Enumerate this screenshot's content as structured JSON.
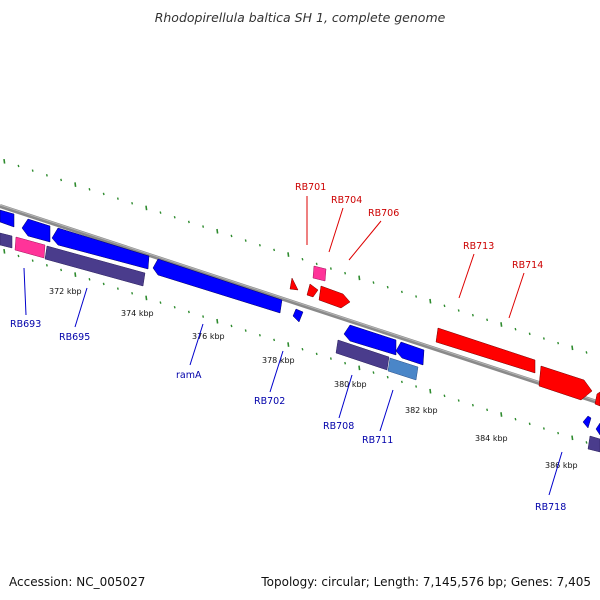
{
  "title": "Rhodopirellula baltica SH 1, complete genome",
  "footer": {
    "accession": "Accession: NC_005027",
    "summary": "Topology: circular; Length: 7,145,576 bp; Genes: 7,405"
  },
  "colors": {
    "backbone": "#888888",
    "dots": "#2e8b2e",
    "forward_gene": "#ff0000",
    "reverse_gene": "#0000ff",
    "forward_label": "#cc0000",
    "reverse_label": "#0000aa",
    "forward_rna": "#ff3399",
    "reverse_band": "#4a3c8c",
    "reverse_band_light": "#4a86c8"
  },
  "ticks": [
    {
      "label": "372 kbp"
    },
    {
      "label": "374 kbp"
    },
    {
      "label": "376 kbp"
    },
    {
      "label": "378 kbp"
    },
    {
      "label": "380 kbp"
    },
    {
      "label": "382 kbp"
    },
    {
      "label": "384 kbp"
    },
    {
      "label": "386 kbp"
    }
  ],
  "forward_labels": [
    "RB701",
    "RB704",
    "RB706",
    "RB713",
    "RB714"
  ],
  "reverse_labels": [
    "RB693",
    "RB695",
    "ramA",
    "RB702",
    "RB708",
    "RB711",
    "RB718"
  ]
}
